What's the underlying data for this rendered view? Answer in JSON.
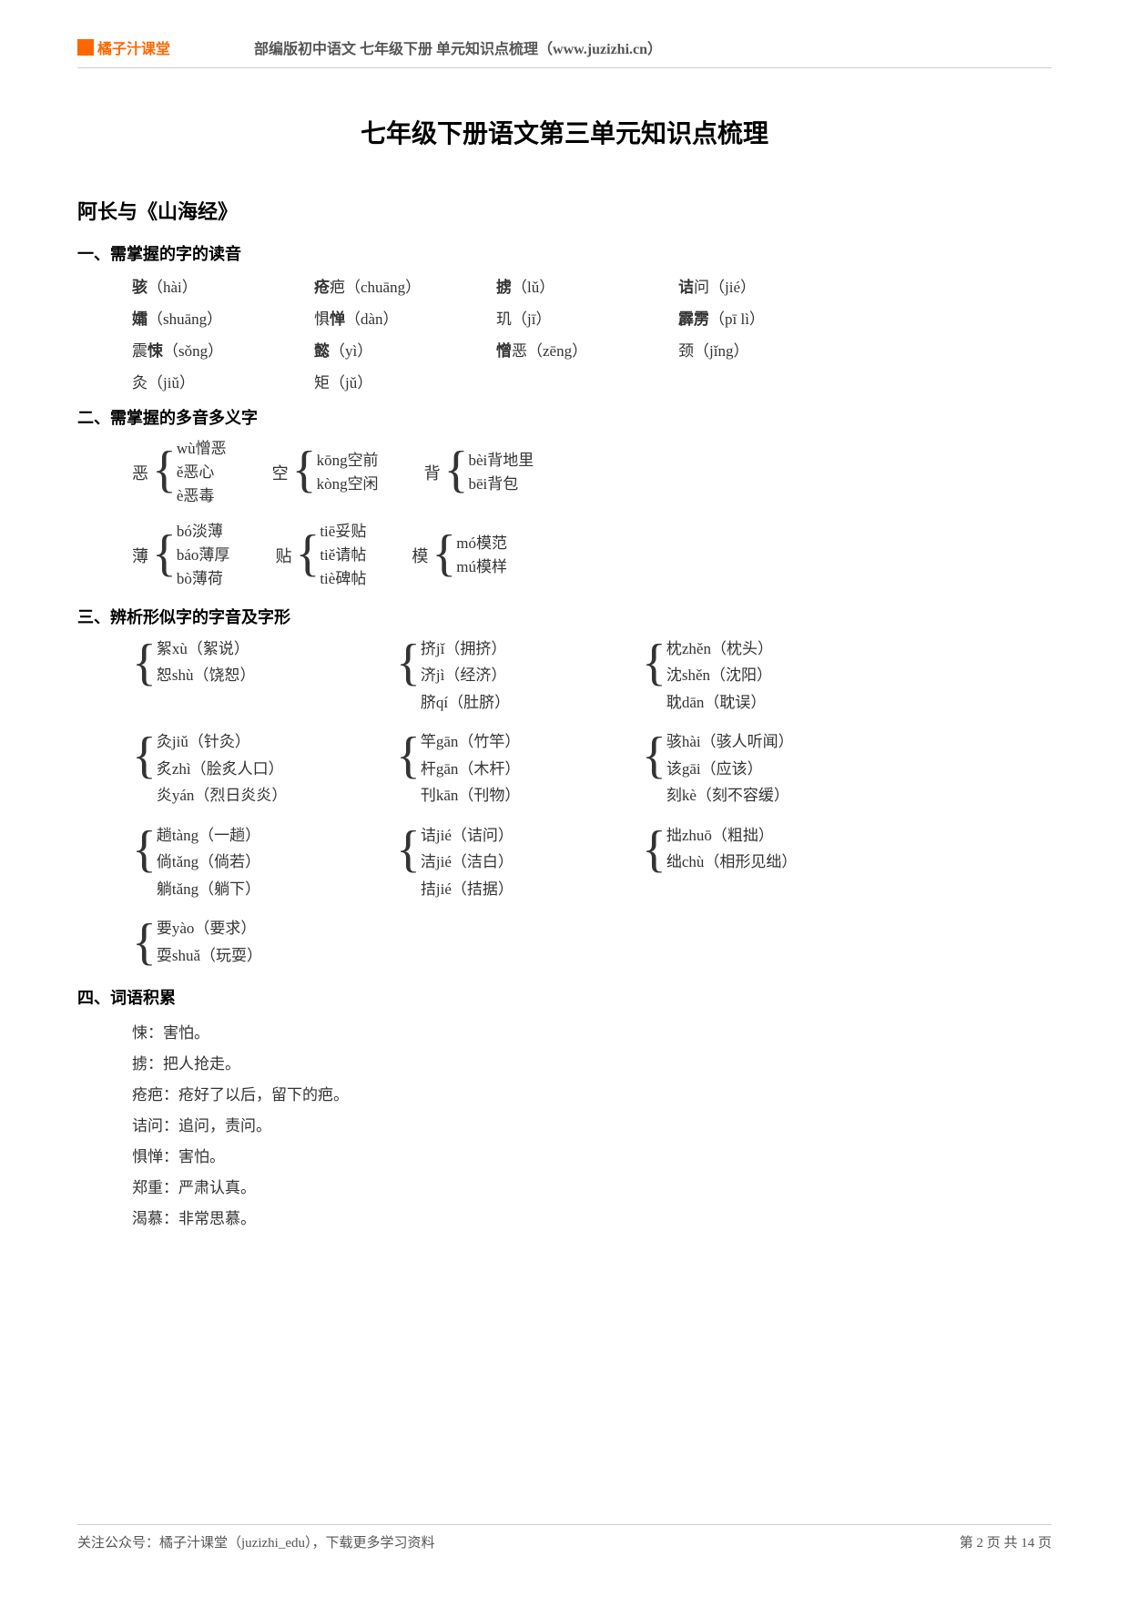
{
  "header": {
    "logo_text": "橘子汁课堂",
    "subtitle": "部编版初中语文 七年级下册 单元知识点梳理（www.juzizhi.cn）"
  },
  "main_title": "七年级下册语文第三单元知识点梳理",
  "lesson_title": "阿长与《山海经》",
  "section1": {
    "heading": "一、需掌握的字的读音",
    "items": [
      "<b>骇</b>（hài）",
      "<b>疮</b>疤（chuāng）",
      "<b>掳</b>（lǔ）",
      "<b>诘</b>问（jié）",
      "<b>孀</b>（shuāng）",
      "惧<b>惮</b>（dàn）",
      "玑（jī）",
      "<b>霹雳</b>（pī lì）",
      "震<b>悚</b>（sǒng）",
      "<b>懿</b>（yì）",
      "<b>憎</b>恶（zēng）",
      "颈（jǐng）",
      "灸（jiǔ）",
      "矩（jǔ）",
      "",
      ""
    ]
  },
  "section2": {
    "heading": "二、需掌握的多音多义字",
    "row1": [
      {
        "char": "恶",
        "list": [
          "wù憎恶",
          "ě恶心",
          "è恶毒"
        ]
      },
      {
        "char": "空",
        "list": [
          "kōng空前",
          "kòng空闲"
        ]
      },
      {
        "char": "背",
        "list": [
          "bèi背地里",
          "bēi背包"
        ]
      }
    ],
    "row2": [
      {
        "char": "薄",
        "list": [
          "bó淡薄",
          "báo薄厚",
          "bò薄荷"
        ]
      },
      {
        "char": "贴",
        "list": [
          "tiē妥贴",
          "tiě请帖",
          "tiè碑帖"
        ]
      },
      {
        "char": "模",
        "list": [
          "mó模范",
          "mú模样"
        ]
      }
    ]
  },
  "section3": {
    "heading": "三、辨析形似字的字音及字形",
    "groups": [
      [
        {
          "list": [
            "絮xù（絮说）",
            "恕shù（饶恕）"
          ]
        },
        {
          "list": [
            "挤jǐ（拥挤）",
            "济jì（经济）",
            "脐qí（肚脐）"
          ]
        },
        {
          "list": [
            "枕zhěn（枕头）",
            "沈shěn（沈阳）",
            "耽dān（耽误）"
          ]
        }
      ],
      [
        {
          "list": [
            "灸jiǔ（针灸）",
            "炙zhì（脍炙人口）",
            "炎yán（烈日炎炎）"
          ]
        },
        {
          "list": [
            "竿gān（竹竿）",
            "杆gān（木杆）",
            "刊kān（刊物）"
          ]
        },
        {
          "list": [
            "骇hài（骇人听闻）",
            "该gāi（应该）",
            "刻kè（刻不容缓）"
          ]
        }
      ],
      [
        {
          "list": [
            "趟tàng（一趟）",
            "倘tǎng（倘若）",
            "躺tǎng（躺下）"
          ]
        },
        {
          "list": [
            "诘jié（诘问）",
            "洁jié（洁白）",
            "拮jié（拮据）"
          ]
        },
        {
          "list": [
            "拙zhuō（粗拙）",
            "绌chù（相形见绌）"
          ]
        }
      ],
      [
        {
          "list": [
            "要yào（要求）",
            "耍shuǎ（玩耍）"
          ]
        }
      ]
    ]
  },
  "section4": {
    "heading": "四、词语积累",
    "items": [
      "悚：害怕。",
      "掳：把人抢走。",
      "疮疤：疮好了以后，留下的疤。",
      "诘问：追问，责问。",
      "惧惮：害怕。",
      "郑重：严肃认真。",
      "渴慕：非常思慕。"
    ]
  },
  "footer": {
    "left": "关注公众号：橘子汁课堂（juzizhi_edu），下载更多学习资料",
    "right": "第 2 页 共 14 页"
  }
}
